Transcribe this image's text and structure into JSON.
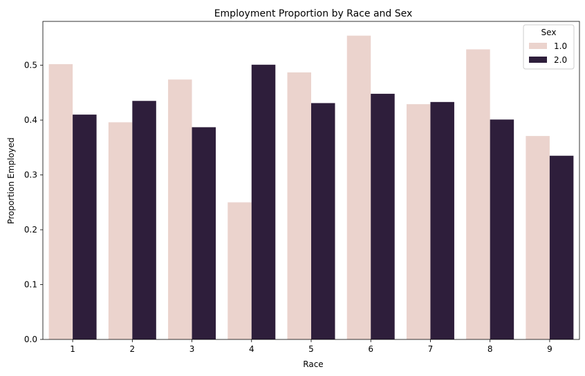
{
  "chart_data": {
    "type": "bar",
    "title": "Employment Proportion by Race and Sex",
    "xlabel": "Race",
    "ylabel": "Proportion Employed",
    "categories": [
      "1",
      "2",
      "3",
      "4",
      "5",
      "6",
      "7",
      "8",
      "9"
    ],
    "series": [
      {
        "name": "1.0",
        "color": "#ebd3cd",
        "values": [
          0.502,
          0.396,
          0.474,
          0.25,
          0.487,
          0.554,
          0.429,
          0.529,
          0.371
        ]
      },
      {
        "name": "2.0",
        "color": "#2e1e3b",
        "values": [
          0.41,
          0.435,
          0.387,
          0.501,
          0.431,
          0.448,
          0.433,
          0.401,
          0.335
        ]
      }
    ],
    "ylim": [
      0,
      0.58
    ],
    "yticks": [
      "0.0",
      "0.1",
      "0.2",
      "0.3",
      "0.4",
      "0.5"
    ],
    "grid": false,
    "legend": {
      "title": "Sex",
      "placement": "top-right"
    }
  }
}
